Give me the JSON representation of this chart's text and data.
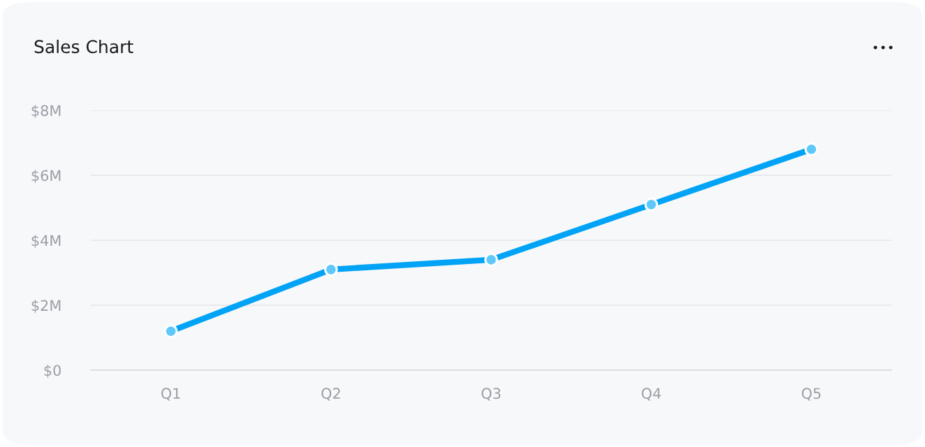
{
  "chart_data": {
    "type": "line",
    "title": "Sales Chart",
    "categories": [
      "Q1",
      "Q2",
      "Q3",
      "Q4",
      "Q5"
    ],
    "series": [
      {
        "color": "#00a3f5",
        "values": [
          1.2,
          3.1,
          3.4,
          5.1,
          6.8
        ]
      }
    ],
    "ylim": [
      0,
      8
    ],
    "yticks": [
      {
        "value": 0,
        "label": "$0"
      },
      {
        "value": 2,
        "label": "$2M"
      },
      {
        "value": 4,
        "label": "$4M"
      },
      {
        "value": 6,
        "label": "$6M"
      },
      {
        "value": 8,
        "label": "$8M"
      }
    ],
    "grid": "y",
    "marker": "circle",
    "line_style": "solid",
    "legend": false
  }
}
